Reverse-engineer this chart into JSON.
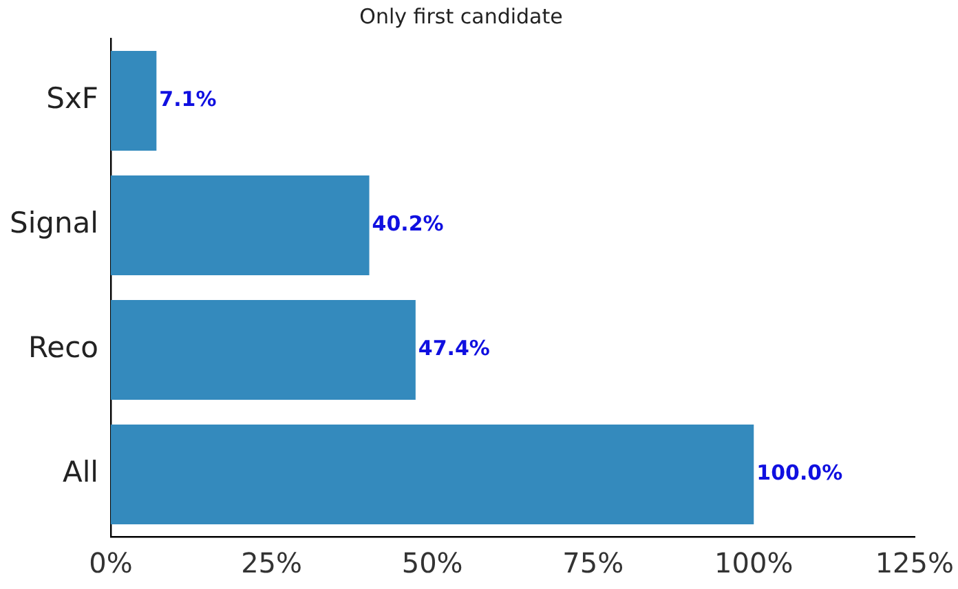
{
  "chart_data": {
    "type": "bar",
    "orientation": "horizontal",
    "title": "Only first candidate",
    "categories": [
      "SxF",
      "Signal",
      "Reco",
      "All"
    ],
    "values": [
      7.1,
      40.2,
      47.4,
      100.0
    ],
    "value_labels": [
      "7.1%",
      "40.2%",
      "47.4%",
      "100.0%"
    ],
    "color": "#348abd",
    "xlim": [
      0,
      125
    ],
    "xticks": [
      {
        "value": 0,
        "label": "0%"
      },
      {
        "value": 25,
        "label": "25%"
      },
      {
        "value": 50,
        "label": "50%"
      },
      {
        "value": 75,
        "label": "75%"
      },
      {
        "value": 100,
        "label": "100%"
      },
      {
        "value": 125,
        "label": "125%"
      }
    ],
    "grid": false,
    "legend": false
  }
}
